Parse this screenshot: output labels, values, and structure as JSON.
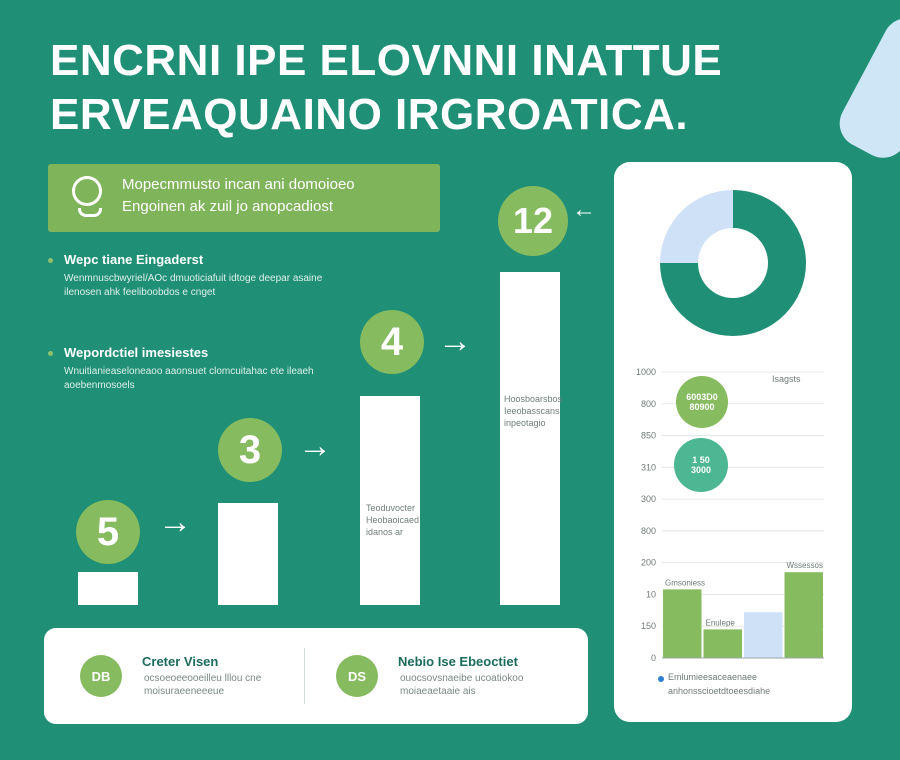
{
  "header": {
    "title_line1": "ENCRNI IPE ELOVNNI INATTUE",
    "title_line2": "ERVEAQUAINO IRGROATICA."
  },
  "callout": {
    "icon": "lightbulb-icon",
    "line1": "Mopecmmusto incan ani domoioeo",
    "line2": "Engoinen ak zuil jo anopcadiost"
  },
  "bullets": [
    {
      "title": "Wepc tiane Eingaderst",
      "body": "Wenmnuscbwyriel/AOc dmuoticiafuit idtoge deepar asaine ilenosen ahk feeliboobdos e cnget"
    },
    {
      "title": "Wepordctiel imesiestes",
      "body": "Wnuitianieaseloneaoo aaonsuet clomcuitahac ete ileaeh aoebenmosoels"
    }
  ],
  "steps": [
    {
      "label": "5",
      "value": 1
    },
    {
      "label": "3",
      "value": 3
    },
    {
      "label": "4",
      "value": 6
    },
    {
      "label": "12",
      "value": 10
    }
  ],
  "step_tags": {
    "bar3": [
      "Teoduvocter",
      "Heobaoicaed",
      "idanos ar"
    ],
    "bar4": [
      "Hoosboarsbos",
      "Ieeobasscans",
      "inpeotagio"
    ]
  },
  "footer": {
    "item1": {
      "badge": "DB",
      "title": "Creter Visen",
      "desc1": "ocsoeoeeooeilleu lllou cne",
      "desc2": "moisuraeeneeeue"
    },
    "item2": {
      "badge": "DS",
      "title": "Nebio Ise Ebeoctiet",
      "desc1": "ouocsovsnaeibe ucoatiokoo",
      "desc2": "moiaeaetaaie ais"
    }
  },
  "panel": {
    "y_axis": [
      "1000",
      "800",
      "850",
      "310",
      "300",
      "800",
      "200",
      "10",
      "150",
      "0"
    ],
    "top_right_label": "Isagsts",
    "bubble1": {
      "line1": "6003D0",
      "line2": "80900"
    },
    "bubble2": {
      "line1": "1 50",
      "line2": "3000"
    },
    "bar_labels": [
      "Gmsoniess",
      "Enulepe",
      "Wssessos"
    ],
    "legend1": "Emlumieesaceaenaee",
    "legend2": "anhonsscioetdtoeesdiahe"
  },
  "chart_data": [
    {
      "type": "pie",
      "categories": [
        "green",
        "light-blue"
      ],
      "values": [
        75,
        25
      ],
      "colors": [
        "#1f8f76",
        "#cfe1f7"
      ]
    },
    {
      "type": "bar",
      "categories": [
        "1",
        "2",
        "3",
        "4"
      ],
      "values": [
        240,
        100,
        160,
        300
      ],
      "colors": [
        "#86bb5f",
        "#86bb5f",
        "#cfe1f7",
        "#86bb5f"
      ],
      "ylim": [
        0,
        1000
      ]
    }
  ],
  "colors": {
    "background": "#1f8f76",
    "accent_green": "#86bb5f",
    "light_blue": "#cfe1f7",
    "white": "#ffffff"
  }
}
